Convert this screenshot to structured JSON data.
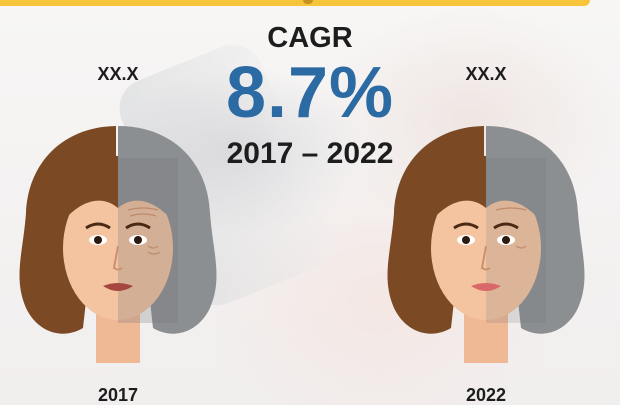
{
  "infographic": {
    "cagr_title": "CAGR",
    "cagr_value": "8.7%",
    "period": "2017 – 2022",
    "left": {
      "value": "XX.X",
      "year": "2017",
      "lip_color": "#a5473e"
    },
    "right": {
      "value": "XX.X",
      "year": "2022",
      "lip_color": "#d8686a"
    }
  },
  "colors": {
    "accent_blue": "#2c6aa3",
    "banner_yellow": "#f7c43a",
    "hair_brown": "#7b4a25",
    "hair_grey": "#8c8f92",
    "skin": "#f4c4a0"
  }
}
